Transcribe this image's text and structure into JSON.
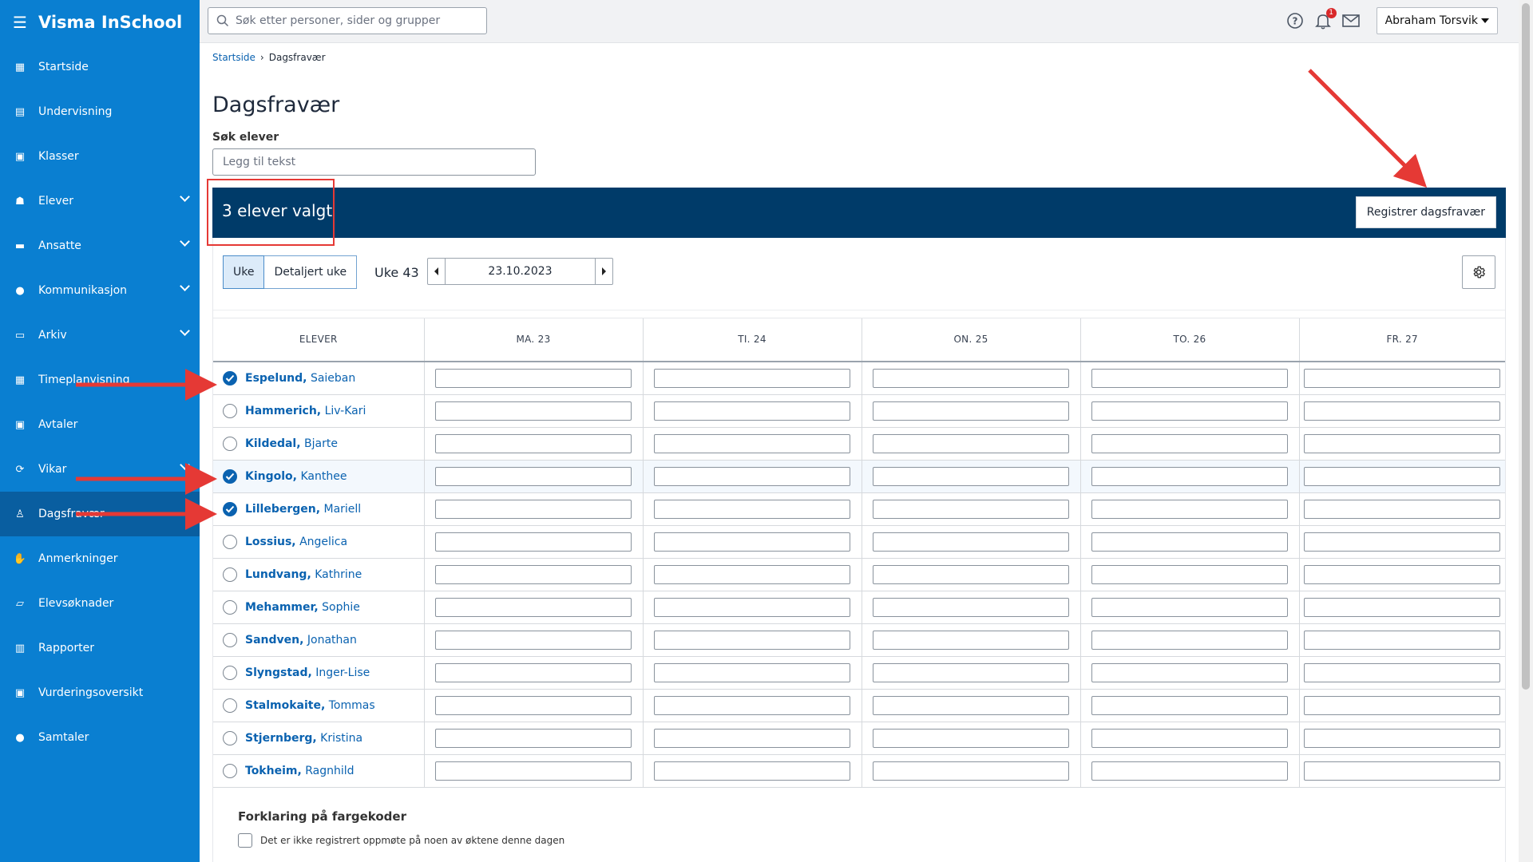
{
  "app": {
    "title": "Visma InSchool"
  },
  "sidebar": {
    "items": [
      {
        "label": "Startside",
        "icon": "grid-icon",
        "expandable": false
      },
      {
        "label": "Undervisning",
        "icon": "book-icon",
        "expandable": false
      },
      {
        "label": "Klasser",
        "icon": "classroom-icon",
        "expandable": false
      },
      {
        "label": "Elever",
        "icon": "student-icon",
        "expandable": true
      },
      {
        "label": "Ansatte",
        "icon": "briefcase-icon",
        "expandable": true
      },
      {
        "label": "Kommunikasjon",
        "icon": "chat-icon",
        "expandable": true
      },
      {
        "label": "Arkiv",
        "icon": "archive-icon",
        "expandable": true
      },
      {
        "label": "Timeplanvisning",
        "icon": "calendar-icon",
        "expandable": false
      },
      {
        "label": "Avtaler",
        "icon": "calendar-check-icon",
        "expandable": false
      },
      {
        "label": "Vikar",
        "icon": "refresh-icon",
        "expandable": true
      },
      {
        "label": "Dagsfravær",
        "icon": "user-check-icon",
        "expandable": false,
        "active": true
      },
      {
        "label": "Anmerkninger",
        "icon": "hand-icon",
        "expandable": false
      },
      {
        "label": "Elevsøknader",
        "icon": "inbox-icon",
        "expandable": false
      },
      {
        "label": "Rapporter",
        "icon": "bar-chart-icon",
        "expandable": false
      },
      {
        "label": "Vurderingsoversikt",
        "icon": "assessment-icon",
        "expandable": false
      },
      {
        "label": "Samtaler",
        "icon": "conversation-icon",
        "expandable": false
      }
    ]
  },
  "topbar": {
    "search_placeholder": "Søk etter personer, sider og grupper",
    "notification_count": "1",
    "user_name": "Abraham Torsvik"
  },
  "breadcrumb": {
    "home": "Startside",
    "current": "Dagsfravær"
  },
  "page": {
    "title": "Dagsfravær",
    "search_label": "Søk elever",
    "search_placeholder": "Legg til tekst"
  },
  "selection": {
    "count_text": "3 elever valgt",
    "register_button": "Registrer dagsfravær"
  },
  "view_toggle": {
    "week": "Uke",
    "detailed_week": "Detaljert uke"
  },
  "week": {
    "label": "Uke 43",
    "date": "23.10.2023"
  },
  "table": {
    "columns": [
      "ELEVER",
      "MA. 23",
      "TI. 24",
      "ON. 25",
      "TO. 26",
      "FR. 27"
    ],
    "rows": [
      {
        "last": "Espelund,",
        "first": "Saieban",
        "checked": true
      },
      {
        "last": "Hammerich,",
        "first": "Liv-Kari",
        "checked": false
      },
      {
        "last": "Kildedal,",
        "first": "Bjarte",
        "checked": false
      },
      {
        "last": "Kingolo,",
        "first": "Kanthee",
        "checked": true
      },
      {
        "last": "Lillebergen,",
        "first": "Mariell",
        "checked": true
      },
      {
        "last": "Lossius,",
        "first": "Angelica",
        "checked": false
      },
      {
        "last": "Lundvang,",
        "first": "Kathrine",
        "checked": false
      },
      {
        "last": "Mehammer,",
        "first": "Sophie",
        "checked": false
      },
      {
        "last": "Sandven,",
        "first": "Jonathan",
        "checked": false
      },
      {
        "last": "Slyngstad,",
        "first": "Inger-Lise",
        "checked": false
      },
      {
        "last": "Stalmokaite,",
        "first": "Tommas",
        "checked": false
      },
      {
        "last": "Stjernberg,",
        "first": "Kristina",
        "checked": false
      },
      {
        "last": "Tokheim,",
        "first": "Ragnhild",
        "checked": false
      }
    ]
  },
  "legend": {
    "title": "Forklaring på fargekoder",
    "items": [
      "Det er ikke registrert oppmøte på noen av øktene denne dagen"
    ]
  },
  "colors": {
    "sidebar": "#0a7fd1",
    "selection_bar": "#003b69",
    "link": "#0a62b0",
    "annotation": "#e53935"
  }
}
